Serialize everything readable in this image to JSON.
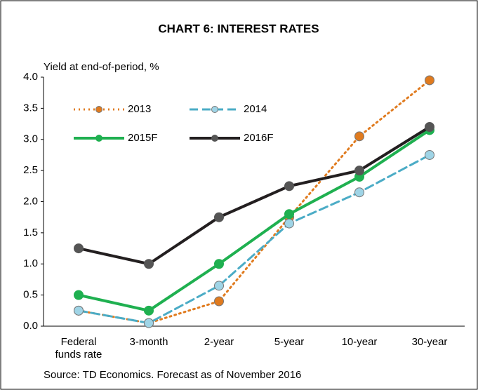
{
  "chart_data": {
    "type": "line",
    "title": "CHART 6: INTEREST RATES",
    "y_label": "Yield at end-of-period, %",
    "source": "Source: TD Economics. Forecast as of November 2016",
    "categories": [
      "Federal funds rate",
      "3-month",
      "2-year",
      "5-year",
      "10-year",
      "30-year"
    ],
    "series": [
      {
        "name": "2013",
        "color": "#e07b1f",
        "marker_color": "#e07b1f",
        "dash": "dotted",
        "values": [
          0.25,
          0.05,
          0.4,
          1.75,
          3.05,
          3.95
        ]
      },
      {
        "name": "2014",
        "color": "#4bacc6",
        "marker_color": "#9fd4e6",
        "dash": "dashed",
        "values": [
          0.25,
          0.05,
          0.65,
          1.65,
          2.15,
          2.75
        ]
      },
      {
        "name": "2015F",
        "color": "#1fb050",
        "marker_color": "#1fb050",
        "dash": "solid",
        "values": [
          0.5,
          0.25,
          1.0,
          1.8,
          2.4,
          3.15
        ]
      },
      {
        "name": "2016F",
        "color": "#231f20",
        "marker_color": "#555555",
        "dash": "solid",
        "values": [
          1.25,
          1.0,
          1.75,
          2.25,
          2.5,
          3.2
        ]
      }
    ],
    "ylim": [
      0,
      4
    ],
    "yticks": [
      {
        "value": 0,
        "label": "0.0"
      },
      0.5,
      {
        "value": 1,
        "label": "1.0"
      },
      1.5,
      {
        "value": 2,
        "label": "2.0"
      },
      2.5,
      {
        "value": 3,
        "label": "3.0"
      },
      3.5,
      {
        "value": 4,
        "label": "4.0"
      }
    ]
  }
}
